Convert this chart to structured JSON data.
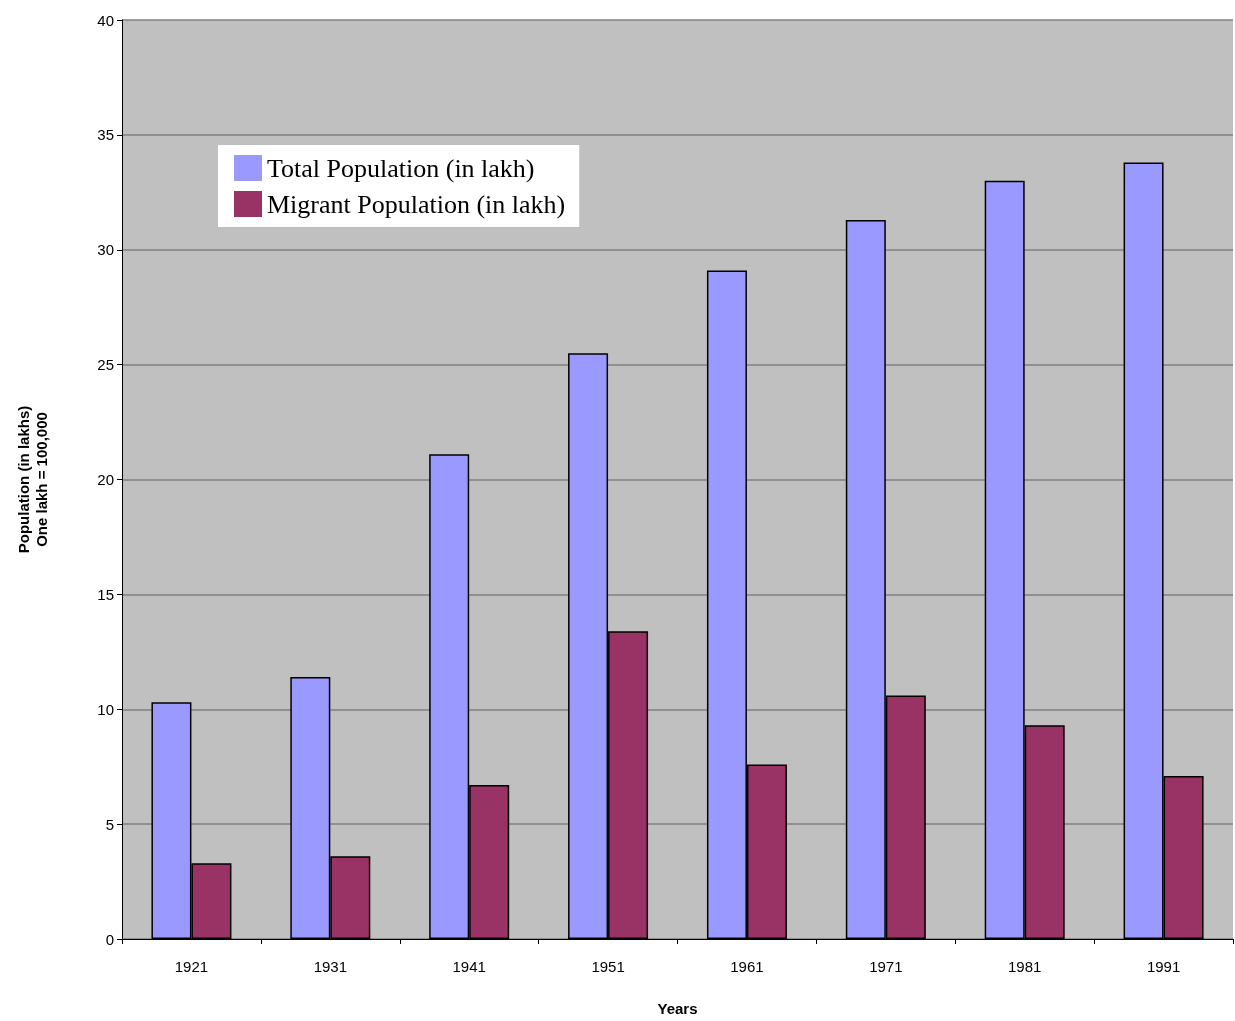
{
  "chart_data": {
    "type": "bar",
    "xlabel": "Years",
    "ylabel": "Population (in lakhs)\nOne lakh = 100,000",
    "categories": [
      "1921",
      "1931",
      "1941",
      "1951",
      "1961",
      "1971",
      "1981",
      "1991"
    ],
    "series": [
      {
        "name": "Total Population (in lakh)",
        "color": "#9999ff",
        "values": [
          10.3,
          11.4,
          21.1,
          25.5,
          29.1,
          31.3,
          33.0,
          33.8
        ]
      },
      {
        "name": "Migrant Population (in lakh)",
        "color": "#993366",
        "values": [
          3.3,
          3.6,
          6.7,
          13.4,
          7.6,
          10.6,
          9.3,
          7.1
        ]
      }
    ],
    "ylim": [
      0,
      40
    ],
    "yticks": [
      0,
      5,
      10,
      15,
      20,
      25,
      30,
      35,
      40
    ],
    "grid": "y",
    "legend": "top left"
  }
}
